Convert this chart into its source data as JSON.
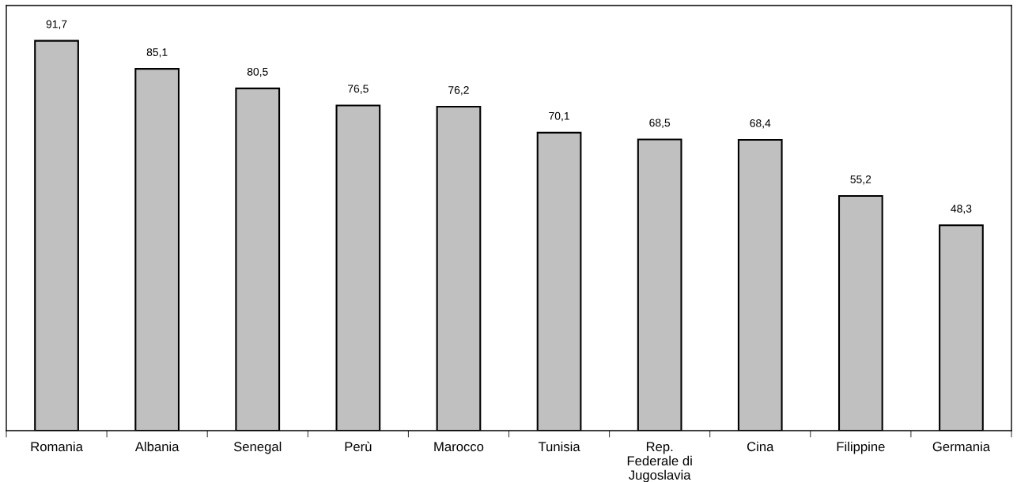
{
  "chart_data": {
    "type": "bar",
    "categories": [
      "Romania",
      "Albania",
      "Senegal",
      "Perù",
      "Marocco",
      "Tunisia",
      "Rep.\nFederale di\nJugoslavia",
      "Cina",
      "Filippine",
      "Germania"
    ],
    "values": [
      91.7,
      85.1,
      80.5,
      76.5,
      76.2,
      70.1,
      68.5,
      68.4,
      55.2,
      48.3
    ],
    "value_labels": [
      "91,7",
      "85,1",
      "80,5",
      "76,5",
      "76,2",
      "70,1",
      "68,5",
      "68,4",
      "55,2",
      "48,3"
    ],
    "color": "#c0c0c0",
    "ylim": [
      0,
      100
    ],
    "tick_labels": "x",
    "grid": false,
    "legend": false
  }
}
